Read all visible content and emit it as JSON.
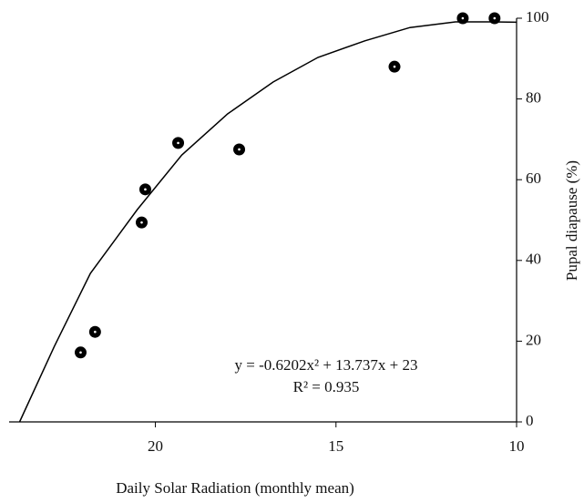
{
  "chart_data": {
    "type": "scatter",
    "x_label": "Daily Solar Radiation (monthly mean)",
    "y_label": "Pupal diapause (%)",
    "x": [
      22.07,
      21.67,
      20.38,
      20.28,
      19.37,
      17.68,
      13.38,
      11.49,
      10.61
    ],
    "values": [
      17.2,
      22.3,
      49.4,
      57.6,
      69.1,
      67.5,
      88.0,
      100,
      100
    ],
    "color": "#000000",
    "fit": {
      "x": [
        23.76,
        22.8,
        21.8,
        20.5,
        19.27,
        18.0,
        16.74,
        15.5,
        14.2,
        12.95,
        11.69,
        10.68,
        10.0
      ],
      "values": [
        0,
        18.7,
        36.8,
        52.6,
        66.1,
        76.3,
        84.2,
        90.3,
        94.4,
        97.7,
        99.1,
        99.1,
        99.0
      ],
      "color": "#000000"
    },
    "annotations": [
      "y = -0.6202x² + 13.737x + 23",
      "R² = 0.935"
    ],
    "xlim": [
      24.05,
      10
    ],
    "ylim": [
      0,
      100
    ],
    "xticks": [
      20,
      15,
      10
    ],
    "yticks": [
      0,
      20,
      40,
      60,
      80,
      100
    ],
    "y_axis_side": "right"
  }
}
